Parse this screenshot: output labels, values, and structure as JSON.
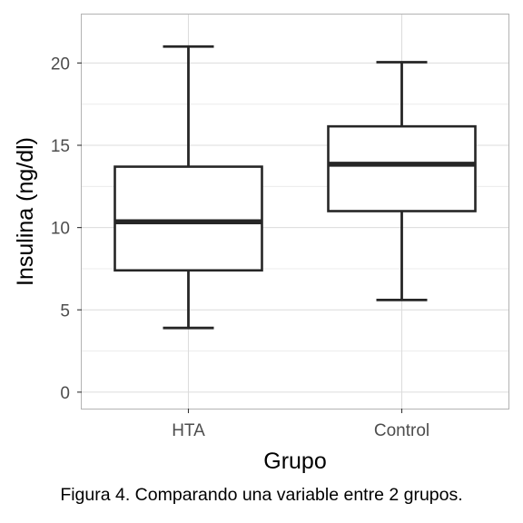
{
  "chart_data": {
    "type": "boxplot",
    "xlabel": "Grupo",
    "ylabel": "Insulina (ng/dl)",
    "ylim": [
      -1,
      23
    ],
    "y_ticks": [
      0,
      5,
      10,
      15,
      20
    ],
    "y_tick_labels": [
      "0",
      "5",
      "10",
      "15",
      "20"
    ],
    "grid": true,
    "categories": [
      "HTA",
      "Control"
    ],
    "boxes": [
      {
        "category": "HTA",
        "whisker_low": 3.9,
        "q1": 7.4,
        "median": 10.35,
        "q3": 13.7,
        "whisker_high": 21.0
      },
      {
        "category": "Control",
        "whisker_low": 5.6,
        "q1": 11.0,
        "median": 13.85,
        "q3": 16.15,
        "whisker_high": 20.05
      }
    ],
    "colors": {
      "box_stroke": "#262626",
      "box_fill": "#ffffff",
      "grid": "#dcdcdc",
      "panel_border": "#b3b3b3"
    }
  },
  "caption": "Figura 4. Comparando una variable entre 2 grupos."
}
